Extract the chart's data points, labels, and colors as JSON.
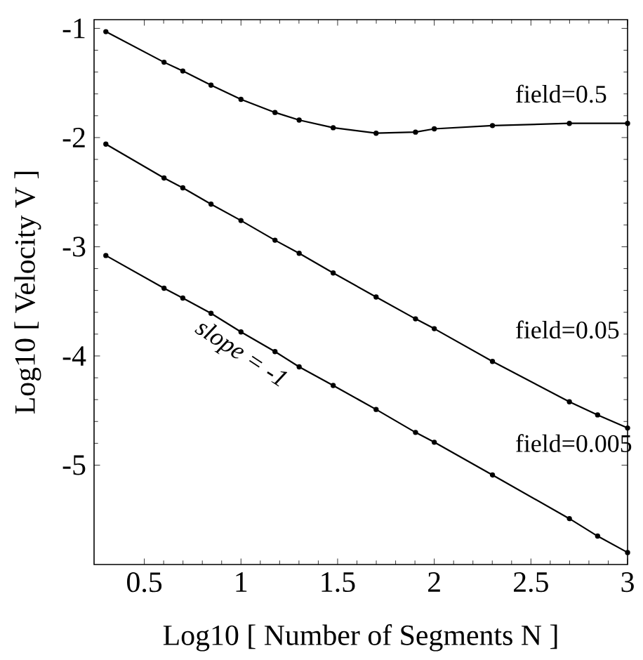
{
  "chart_data": {
    "type": "line",
    "xlabel": "Log10 [ Number of Segments N ]",
    "ylabel": "Log10 [ Velocity V ]",
    "xlim": [
      0.24,
      3.0
    ],
    "ylim": [
      -5.91,
      -0.92
    ],
    "xticks": [
      0.5,
      1,
      1.5,
      2,
      2.5,
      3
    ],
    "yticks": [
      -5,
      -4,
      -3,
      -2,
      -1
    ],
    "marker": "circle",
    "line_style": "solid",
    "grid": false,
    "legend": "right",
    "annotations": [
      "slope = -1"
    ],
    "series": [
      {
        "name": "field=0.5",
        "color": "#000000",
        "x": [
          0.301,
          0.602,
          0.699,
          0.845,
          1.0,
          1.176,
          1.301,
          1.477,
          1.699,
          1.903,
          2.0,
          2.301,
          2.699,
          3.0
        ],
        "values": [
          -1.03,
          -1.31,
          -1.39,
          -1.52,
          -1.65,
          -1.77,
          -1.84,
          -1.91,
          -1.96,
          -1.95,
          -1.92,
          -1.89,
          -1.87,
          -1.87
        ]
      },
      {
        "name": "field=0.05",
        "color": "#000000",
        "x": [
          0.301,
          0.602,
          0.699,
          0.845,
          1.0,
          1.176,
          1.301,
          1.477,
          1.699,
          1.903,
          2.0,
          2.301,
          2.699,
          2.845,
          3.0
        ],
        "values": [
          -2.06,
          -2.37,
          -2.46,
          -2.61,
          -2.76,
          -2.94,
          -3.06,
          -3.24,
          -3.46,
          -3.66,
          -3.75,
          -4.05,
          -4.42,
          -4.54,
          -4.66
        ]
      },
      {
        "name": "field=0.005",
        "color": "#000000",
        "x": [
          0.301,
          0.602,
          0.699,
          0.845,
          1.0,
          1.176,
          1.301,
          1.477,
          1.699,
          1.903,
          2.0,
          2.301,
          2.699,
          2.845,
          3.0
        ],
        "values": [
          -3.08,
          -3.38,
          -3.47,
          -3.61,
          -3.78,
          -3.96,
          -4.1,
          -4.27,
          -4.49,
          -4.7,
          -4.79,
          -5.09,
          -5.49,
          -5.65,
          -5.8
        ]
      }
    ]
  }
}
